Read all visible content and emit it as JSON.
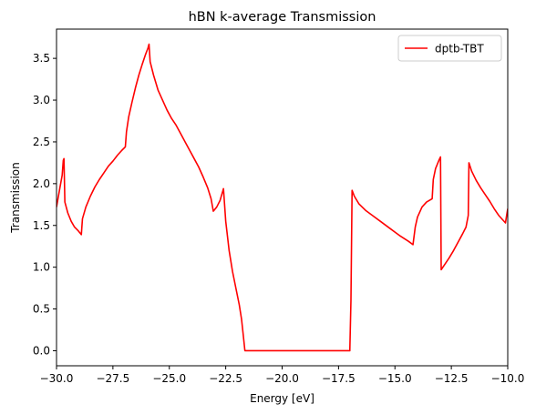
{
  "chart_data": {
    "type": "line",
    "title": "hBN k-average Transmission",
    "xlabel": "Energy [eV]",
    "ylabel": "Transmission",
    "xlim": [
      -30,
      -10
    ],
    "ylim": [
      -0.18,
      3.85
    ],
    "xticks": [
      -30,
      -27.5,
      -25,
      -22.5,
      -20,
      -17.5,
      -15,
      -12.5,
      -10
    ],
    "xtick_labels": [
      "−30.0",
      "−27.5",
      "−25.0",
      "−22.5",
      "−20.0",
      "−17.5",
      "−15.0",
      "−12.5",
      "−10.0"
    ],
    "yticks": [
      0,
      0.5,
      1,
      1.5,
      2,
      2.5,
      3,
      3.5
    ],
    "ytick_labels": [
      "0.0",
      "0.5",
      "1.0",
      "1.5",
      "2.0",
      "2.5",
      "3.0",
      "3.5"
    ],
    "grid": false,
    "legend_position": "top-right",
    "series": [
      {
        "name": "dptb-TBT",
        "color": "#ff0000",
        "points": [
          [
            -30.0,
            1.72
          ],
          [
            -29.85,
            1.95
          ],
          [
            -29.75,
            2.1
          ],
          [
            -29.7,
            2.28
          ],
          [
            -29.67,
            2.3
          ],
          [
            -29.63,
            1.78
          ],
          [
            -29.5,
            1.65
          ],
          [
            -29.35,
            1.55
          ],
          [
            -29.2,
            1.48
          ],
          [
            -29.05,
            1.44
          ],
          [
            -28.9,
            1.39
          ],
          [
            -28.85,
            1.58
          ],
          [
            -28.7,
            1.72
          ],
          [
            -28.5,
            1.85
          ],
          [
            -28.3,
            1.96
          ],
          [
            -28.1,
            2.05
          ],
          [
            -27.9,
            2.13
          ],
          [
            -27.7,
            2.21
          ],
          [
            -27.5,
            2.27
          ],
          [
            -27.3,
            2.34
          ],
          [
            -27.1,
            2.4
          ],
          [
            -26.95,
            2.44
          ],
          [
            -26.9,
            2.62
          ],
          [
            -26.8,
            2.8
          ],
          [
            -26.65,
            2.98
          ],
          [
            -26.5,
            3.15
          ],
          [
            -26.35,
            3.3
          ],
          [
            -26.2,
            3.43
          ],
          [
            -26.05,
            3.55
          ],
          [
            -25.95,
            3.62
          ],
          [
            -25.9,
            3.67
          ],
          [
            -25.85,
            3.46
          ],
          [
            -25.7,
            3.3
          ],
          [
            -25.5,
            3.12
          ],
          [
            -25.3,
            3.0
          ],
          [
            -25.1,
            2.88
          ],
          [
            -24.9,
            2.78
          ],
          [
            -24.7,
            2.7
          ],
          [
            -24.5,
            2.6
          ],
          [
            -24.3,
            2.5
          ],
          [
            -24.1,
            2.4
          ],
          [
            -23.9,
            2.3
          ],
          [
            -23.7,
            2.2
          ],
          [
            -23.5,
            2.08
          ],
          [
            -23.3,
            1.95
          ],
          [
            -23.15,
            1.82
          ],
          [
            -23.05,
            1.67
          ],
          [
            -22.9,
            1.72
          ],
          [
            -22.75,
            1.8
          ],
          [
            -22.6,
            1.94
          ],
          [
            -22.5,
            1.55
          ],
          [
            -22.35,
            1.2
          ],
          [
            -22.2,
            0.95
          ],
          [
            -22.05,
            0.75
          ],
          [
            -21.9,
            0.55
          ],
          [
            -21.8,
            0.38
          ],
          [
            -21.72,
            0.18
          ],
          [
            -21.65,
            0.0
          ],
          [
            -17.0,
            0.0
          ],
          [
            -16.95,
            0.6
          ],
          [
            -16.9,
            1.92
          ],
          [
            -16.8,
            1.85
          ],
          [
            -16.6,
            1.76
          ],
          [
            -16.3,
            1.68
          ],
          [
            -16.0,
            1.62
          ],
          [
            -15.6,
            1.54
          ],
          [
            -15.2,
            1.46
          ],
          [
            -14.8,
            1.38
          ],
          [
            -14.4,
            1.31
          ],
          [
            -14.2,
            1.27
          ],
          [
            -14.1,
            1.48
          ],
          [
            -14.0,
            1.6
          ],
          [
            -13.8,
            1.72
          ],
          [
            -13.6,
            1.78
          ],
          [
            -13.35,
            1.82
          ],
          [
            -13.3,
            2.05
          ],
          [
            -13.2,
            2.18
          ],
          [
            -13.05,
            2.28
          ],
          [
            -12.98,
            2.32
          ],
          [
            -12.95,
            0.97
          ],
          [
            -12.8,
            1.03
          ],
          [
            -12.6,
            1.11
          ],
          [
            -12.4,
            1.2
          ],
          [
            -12.2,
            1.3
          ],
          [
            -12.0,
            1.4
          ],
          [
            -11.85,
            1.48
          ],
          [
            -11.75,
            1.62
          ],
          [
            -11.72,
            2.25
          ],
          [
            -11.6,
            2.15
          ],
          [
            -11.4,
            2.04
          ],
          [
            -11.2,
            1.95
          ],
          [
            -11.0,
            1.87
          ],
          [
            -10.8,
            1.79
          ],
          [
            -10.6,
            1.7
          ],
          [
            -10.4,
            1.62
          ],
          [
            -10.2,
            1.56
          ],
          [
            -10.1,
            1.53
          ],
          [
            -10.05,
            1.62
          ],
          [
            -10.0,
            1.7
          ]
        ]
      }
    ]
  }
}
